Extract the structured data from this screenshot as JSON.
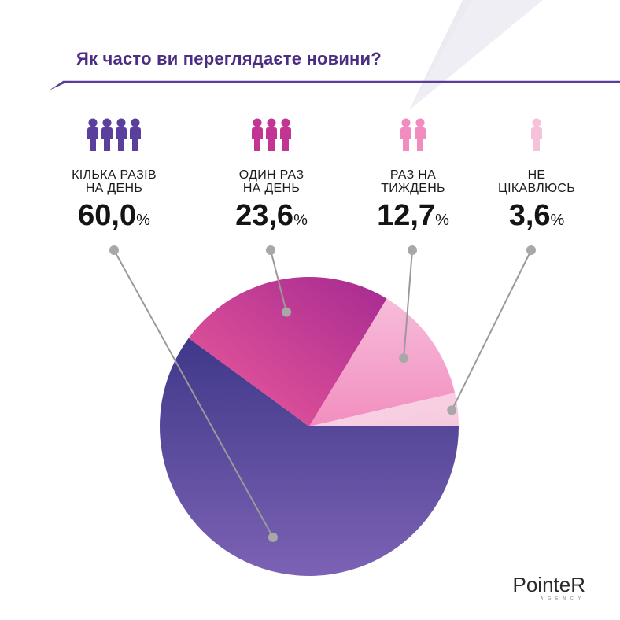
{
  "title": "Як часто ви переглядаєте новини?",
  "chart_data": {
    "type": "pie",
    "title": "Як часто ви переглядаєте новини?",
    "categories": [
      "КІЛЬКА РАЗІВ НА ДЕНЬ",
      "ОДИН РАЗ НА ДЕНЬ",
      "РАЗ НА ТИЖДЕНЬ",
      "НЕ ЦІКАВЛЮСЬ"
    ],
    "values": [
      60.0,
      23.6,
      12.7,
      3.6
    ],
    "unit": "%",
    "colors": [
      "#4f3d92",
      "#c2338f",
      "#f2a0c8",
      "#f8d2e4"
    ],
    "labels_display": [
      {
        "line": "КІЛЬКА РАЗІВ\nНА ДЕНЬ",
        "value": "60,0",
        "people_icons": 4
      },
      {
        "line": "ОДИН РАЗ\nНА ДЕНЬ",
        "value": "23,6",
        "people_icons": 3
      },
      {
        "line": "РАЗ НА\nТИЖДЕНЬ",
        "value": "12,7",
        "people_icons": 2
      },
      {
        "line": "НЕ\nЦІКАВЛЮСЬ",
        "value": "3,6",
        "people_icons": 1
      }
    ],
    "icon_colors": [
      "#5b3f9c",
      "#c23593",
      "#f08cc0",
      "#f6c2da"
    ],
    "legend": "top"
  },
  "logo": {
    "brand": "PointeR",
    "sub": "AGENCY"
  }
}
